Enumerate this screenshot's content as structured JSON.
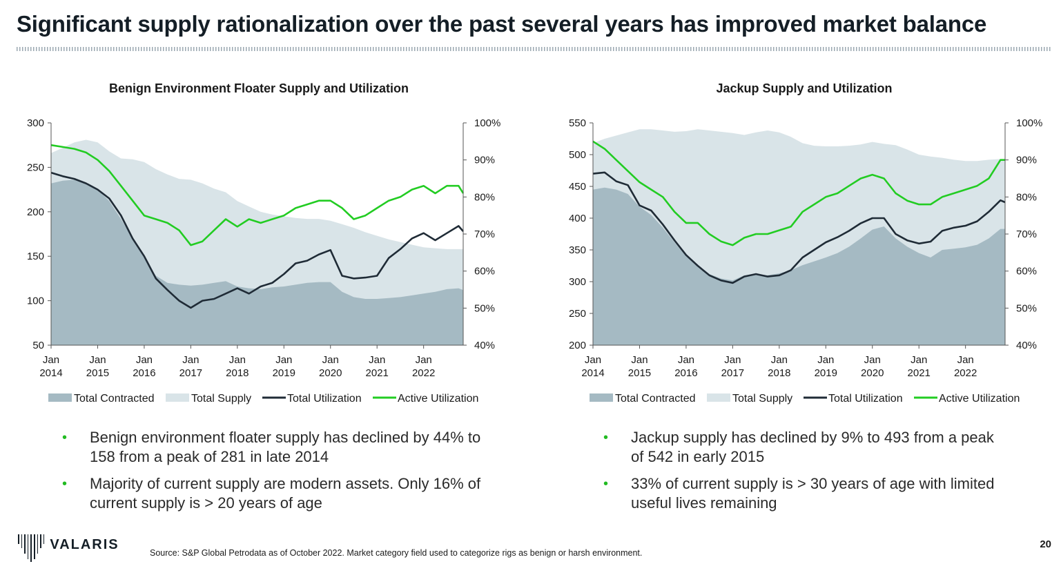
{
  "page": {
    "title": "Significant supply rationalization over the past several years has improved market balance",
    "source": "Source: S&P Global Petrodata as of October 2022. Market category field used to categorize rigs as benign or harsh environment.",
    "page_number": "20",
    "logo_text": "VALARIS"
  },
  "colors": {
    "contracted": "#a5bac3",
    "supply": "#d9e4e8",
    "total_util": "#1f2b36",
    "active_util": "#22cc22",
    "bullet": "#22bb22"
  },
  "bullets_left": [
    "Benign environment floater supply has declined by 44% to 158 from a peak of 281 in late 2014",
    "Majority of current supply are modern assets. Only 16% of current supply is > 20 years of age"
  ],
  "bullets_right": [
    "Jackup supply has declined by 9% to 493 from a peak of 542 in early 2015",
    "33% of current supply is > 30 years of age with limited useful lives remaining"
  ],
  "chart_data": [
    {
      "type": "area",
      "title": "Benign Environment Floater Supply and Utilization",
      "legend": [
        "Total Contracted",
        "Total Supply",
        "Total Utilization",
        "Active Utilization"
      ],
      "x_ticks": [
        [
          "Jan",
          "2014"
        ],
        [
          "Jan",
          "2015"
        ],
        [
          "Jan",
          "2016"
        ],
        [
          "Jan",
          "2017"
        ],
        [
          "Jan",
          "2018"
        ],
        [
          "Jan",
          "2019"
        ],
        [
          "Jan",
          "2020"
        ],
        [
          "Jan",
          "2021"
        ],
        [
          "Jan",
          "2022"
        ]
      ],
      "x_range": [
        2014.0,
        2022.85
      ],
      "ylim": [
        50,
        300
      ],
      "y_ticks": [
        "300",
        "250",
        "200",
        "150",
        "100",
        "50"
      ],
      "y2lim": [
        40,
        100
      ],
      "y2_ticks": [
        "100%",
        "90%",
        "80%",
        "70%",
        "60%",
        "50%",
        "40%"
      ],
      "x": [
        2014.0,
        2014.25,
        2014.5,
        2014.75,
        2015.0,
        2015.25,
        2015.5,
        2015.75,
        2016.0,
        2016.25,
        2016.5,
        2016.75,
        2017.0,
        2017.25,
        2017.5,
        2017.75,
        2018.0,
        2018.25,
        2018.5,
        2018.75,
        2019.0,
        2019.25,
        2019.5,
        2019.75,
        2020.0,
        2020.25,
        2020.5,
        2020.75,
        2021.0,
        2021.25,
        2021.5,
        2021.75,
        2022.0,
        2022.25,
        2022.5,
        2022.75,
        2022.85
      ],
      "series": [
        {
          "name": "Total Contracted",
          "axis": "left",
          "values": [
            232,
            235,
            236,
            232,
            225,
            212,
            192,
            170,
            148,
            128,
            120,
            118,
            117,
            118,
            120,
            122,
            116,
            114,
            113,
            115,
            116,
            118,
            120,
            121,
            121,
            110,
            104,
            102,
            102,
            103,
            104,
            106,
            108,
            110,
            113,
            114,
            112
          ]
        },
        {
          "name": "Total Supply",
          "axis": "left",
          "values": [
            266,
            272,
            278,
            281,
            278,
            268,
            260,
            259,
            256,
            248,
            242,
            237,
            236,
            232,
            226,
            222,
            212,
            206,
            200,
            197,
            195,
            193,
            192,
            192,
            190,
            186,
            182,
            177,
            173,
            169,
            166,
            163,
            160,
            159,
            158,
            158,
            158
          ]
        },
        {
          "name": "Total Utilization",
          "axis": "left",
          "values": [
            244,
            240,
            237,
            232,
            225,
            215,
            196,
            170,
            150,
            125,
            112,
            100,
            92,
            100,
            102,
            108,
            114,
            108,
            116,
            120,
            130,
            142,
            145,
            152,
            157,
            128,
            125,
            126,
            128,
            148,
            158,
            170,
            176,
            168,
            176,
            184,
            178
          ]
        },
        {
          "name": "Active Utilization",
          "axis": "right",
          "values": [
            94,
            93.5,
            93,
            92,
            90,
            87,
            83,
            79,
            75,
            74,
            73,
            71,
            67,
            68,
            71,
            74,
            72,
            74,
            73,
            74,
            75,
            77,
            78,
            79,
            79,
            77,
            74,
            75,
            77,
            79,
            80,
            82,
            83,
            81,
            83,
            83,
            81
          ]
        }
      ]
    },
    {
      "type": "area",
      "title": "Jackup Supply and Utilization",
      "legend": [
        "Total Contracted",
        "Total Supply",
        "Total Utilization",
        "Active Utilization"
      ],
      "x_ticks": [
        [
          "Jan",
          "2014"
        ],
        [
          "Jan",
          "2015"
        ],
        [
          "Jan",
          "2016"
        ],
        [
          "Jan",
          "2017"
        ],
        [
          "Jan",
          "2018"
        ],
        [
          "Jan",
          "2019"
        ],
        [
          "Jan",
          "2020"
        ],
        [
          "Jan",
          "2021"
        ],
        [
          "Jan",
          "2022"
        ]
      ],
      "x_range": [
        2014.0,
        2022.85
      ],
      "ylim": [
        200,
        550
      ],
      "y_ticks": [
        "550",
        "500",
        "450",
        "400",
        "350",
        "300",
        "250",
        "200"
      ],
      "y2lim": [
        40,
        100
      ],
      "y2_ticks": [
        "100%",
        "90%",
        "80%",
        "70%",
        "60%",
        "50%",
        "40%"
      ],
      "x": [
        2014.0,
        2014.25,
        2014.5,
        2014.75,
        2015.0,
        2015.25,
        2015.5,
        2015.75,
        2016.0,
        2016.25,
        2016.5,
        2016.75,
        2017.0,
        2017.25,
        2017.5,
        2017.75,
        2018.0,
        2018.25,
        2018.5,
        2018.75,
        2019.0,
        2019.25,
        2019.5,
        2019.75,
        2020.0,
        2020.25,
        2020.5,
        2020.75,
        2021.0,
        2021.25,
        2021.5,
        2021.75,
        2022.0,
        2022.25,
        2022.5,
        2022.75,
        2022.85
      ],
      "series": [
        {
          "name": "Total Contracted",
          "axis": "left",
          "values": [
            445,
            448,
            445,
            438,
            418,
            405,
            385,
            362,
            340,
            325,
            312,
            305,
            302,
            310,
            312,
            310,
            313,
            318,
            326,
            332,
            338,
            345,
            355,
            368,
            382,
            387,
            368,
            355,
            345,
            338,
            350,
            352,
            354,
            358,
            368,
            383,
            383
          ]
        },
        {
          "name": "Total Supply",
          "axis": "left",
          "values": [
            518,
            525,
            530,
            535,
            540,
            540,
            538,
            536,
            537,
            540,
            538,
            536,
            534,
            531,
            535,
            538,
            535,
            528,
            518,
            514,
            513,
            513,
            514,
            516,
            520,
            517,
            515,
            508,
            500,
            497,
            495,
            492,
            490,
            490,
            492,
            493,
            493
          ]
        },
        {
          "name": "Total Utilization",
          "axis": "left",
          "values": [
            470,
            472,
            458,
            452,
            420,
            412,
            390,
            365,
            342,
            325,
            310,
            302,
            298,
            308,
            312,
            308,
            310,
            318,
            338,
            350,
            362,
            370,
            380,
            392,
            400,
            400,
            375,
            365,
            360,
            363,
            380,
            385,
            388,
            395,
            410,
            428,
            425
          ]
        },
        {
          "name": "Active Utilization",
          "axis": "right",
          "values": [
            95,
            93,
            90,
            87,
            84,
            82,
            80,
            76,
            73,
            73,
            70,
            68,
            67,
            69,
            70,
            70,
            71,
            72,
            76,
            78,
            80,
            81,
            83,
            85,
            86,
            85,
            81,
            79,
            78,
            78,
            80,
            81,
            82,
            83,
            85,
            90,
            90
          ]
        }
      ]
    }
  ]
}
